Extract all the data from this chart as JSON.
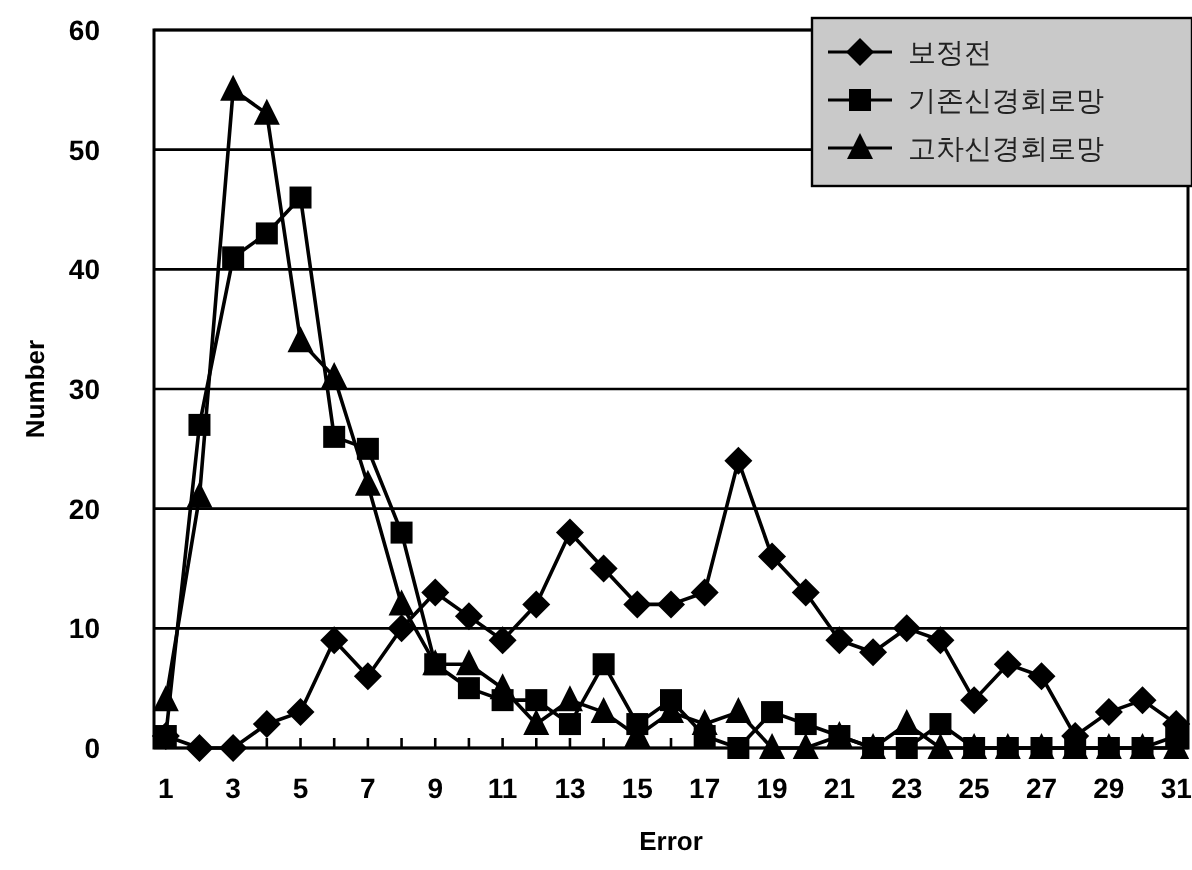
{
  "chart_data": {
    "type": "line",
    "xlabel": "Error",
    "ylabel": "Number",
    "x": [
      1,
      2,
      3,
      4,
      5,
      6,
      7,
      8,
      9,
      10,
      11,
      12,
      13,
      14,
      15,
      16,
      17,
      18,
      19,
      20,
      21,
      22,
      23,
      24,
      25,
      26,
      27,
      28,
      29,
      30,
      31
    ],
    "series": [
      {
        "name": "보정전",
        "color": "#000000",
        "marker": "diamond",
        "values": [
          1,
          0,
          0,
          2,
          3,
          9,
          6,
          10,
          13,
          11,
          9,
          12,
          18,
          15,
          12,
          12,
          13,
          24,
          16,
          13,
          9,
          8,
          10,
          9,
          4,
          7,
          6,
          1,
          3,
          4,
          2
        ]
      },
      {
        "name": "기존신경회로망",
        "color": "#000000",
        "marker": "square",
        "values": [
          1,
          27,
          41,
          43,
          46,
          26,
          25,
          18,
          7,
          5,
          4,
          4,
          2,
          7,
          2,
          4,
          1,
          0,
          3,
          2,
          1,
          0,
          0,
          2,
          0,
          0,
          0,
          0,
          0,
          0,
          1
        ]
      },
      {
        "name": "고차신경회로망",
        "color": "#000000",
        "marker": "triangle",
        "values": [
          4,
          21,
          55,
          53,
          34,
          31,
          22,
          12,
          7,
          7,
          5,
          2,
          4,
          3,
          1,
          3,
          2,
          3,
          0,
          0,
          1,
          0,
          2,
          0,
          0,
          0,
          0,
          0,
          0,
          0,
          0
        ]
      }
    ],
    "xlim": [
      0.65,
      31.35
    ],
    "xticks": [
      1,
      {
        "value": 2,
        "label": null
      },
      3,
      {
        "value": 4,
        "label": null
      },
      5,
      {
        "value": 6,
        "label": null
      },
      7,
      {
        "value": 8,
        "label": null
      },
      9,
      {
        "value": 10,
        "label": null
      },
      11,
      {
        "value": 12,
        "label": null
      },
      13,
      {
        "value": 14,
        "label": null
      },
      15,
      {
        "value": 16,
        "label": null
      },
      17,
      {
        "value": 18,
        "label": null
      },
      19,
      {
        "value": 20,
        "label": null
      },
      21,
      {
        "value": 22,
        "label": null
      },
      23,
      {
        "value": 24,
        "label": null
      },
      25,
      {
        "value": 26,
        "label": null
      },
      27,
      {
        "value": 28,
        "label": null
      },
      29,
      {
        "value": 30,
        "label": null
      },
      31
    ],
    "ylim": [
      0,
      60
    ],
    "yticks": [
      0,
      10,
      20,
      30,
      40,
      50,
      60
    ],
    "grid": "y",
    "legend": "top right",
    "line_style": "solid"
  }
}
